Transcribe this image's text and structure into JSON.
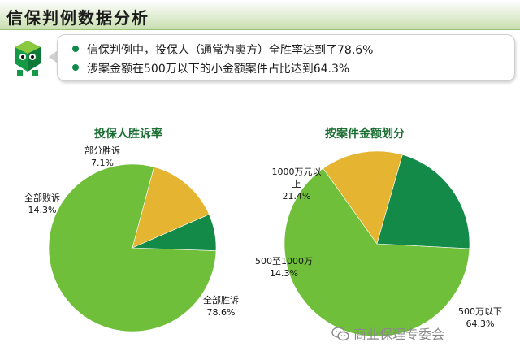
{
  "page_title": "信保判例数据分析",
  "bullets": [
    "信保判例中，投保人（通常为卖方）全胜率达到了78.6%",
    "涉案金额在500万以下的小金额案件占比达到64.3%"
  ],
  "colors": {
    "green_light": "#6fbf3a",
    "green_dark": "#138a47",
    "yellow": "#e5b431",
    "title_green": "#1a6e32"
  },
  "footer": {
    "icon": "wechat-icon",
    "text": "商业保理专委会"
  },
  "chart_data": [
    {
      "type": "pie",
      "title": "投保人胜诉率",
      "slices": [
        {
          "label": "全部胜诉",
          "value": 78.6,
          "display": "78.6%",
          "color": "#6fbf3a"
        },
        {
          "label": "全部败诉",
          "value": 14.3,
          "display": "14.3%",
          "color": "#e5b431"
        },
        {
          "label": "部分胜诉",
          "value": 7.1,
          "display": "7.1%",
          "color": "#138a47"
        }
      ]
    },
    {
      "type": "pie",
      "title": "按案件金额划分",
      "slices": [
        {
          "label": "500万以下",
          "value": 64.3,
          "display": "64.3%",
          "color": "#6fbf3a"
        },
        {
          "label": "500至1000万",
          "value": 14.3,
          "display": "14.3%",
          "color": "#e5b431"
        },
        {
          "label": "1000万元以上",
          "value": 21.4,
          "display": "21.4%",
          "color": "#138a47"
        }
      ]
    }
  ]
}
